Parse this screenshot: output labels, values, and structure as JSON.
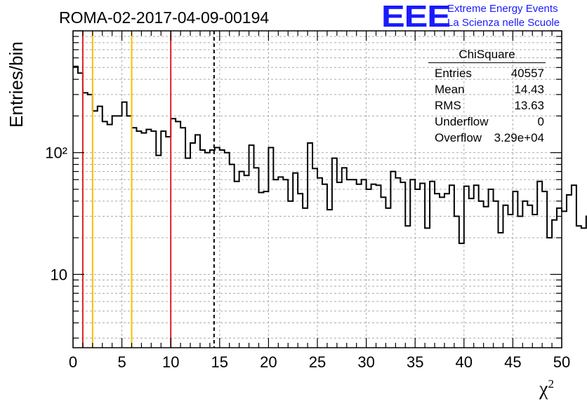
{
  "header": {
    "run_title": "ROMA-02-2017-04-09-00194",
    "logo_text": "EEE",
    "logo_line1": "Extreme Energy Events",
    "logo_line2": "La Scienza nelle Scuole"
  },
  "stats": {
    "title": "ChiSquare",
    "rows": [
      {
        "key": "Entries",
        "value": "40557"
      },
      {
        "key": "Mean",
        "value": "14.43"
      },
      {
        "key": "RMS",
        "value": "13.63"
      },
      {
        "key": "Underflow",
        "value": "0"
      },
      {
        "key": "Overflow",
        "value": "3.29e+04"
      }
    ]
  },
  "chart_data": {
    "type": "histogram",
    "ylabel": "Entries/bin",
    "xlabel": "χ",
    "xlabel_sup": "2",
    "xlim": [
      0,
      50
    ],
    "ylim": [
      2.5,
      1000
    ],
    "yscale": "log",
    "x_ticks": [
      0,
      5,
      10,
      15,
      20,
      25,
      30,
      35,
      40,
      45,
      50
    ],
    "x_tick_labels": [
      "0",
      "5",
      "10",
      "15",
      "20",
      "25",
      "30",
      "35",
      "40",
      "45",
      "50"
    ],
    "y_tick_labels": [
      {
        "value": 10,
        "label": "10"
      },
      {
        "value": 100,
        "label": "10²"
      }
    ],
    "grid": true,
    "bin_width": 0.5,
    "values": [
      510,
      450,
      310,
      300,
      220,
      240,
      180,
      170,
      200,
      200,
      260,
      200,
      160,
      150,
      145,
      155,
      150,
      95,
      150,
      135,
      190,
      180,
      160,
      90,
      120,
      140,
      105,
      100,
      105,
      110,
      105,
      100,
      80,
      58,
      70,
      65,
      115,
      75,
      47,
      48,
      110,
      60,
      63,
      60,
      40,
      68,
      46,
      35,
      120,
      74,
      62,
      55,
      34,
      90,
      57,
      75,
      60,
      60,
      55,
      60,
      50,
      55,
      54,
      43,
      35,
      70,
      62,
      57,
      25,
      60,
      50,
      56,
      24,
      58,
      46,
      43,
      46,
      54,
      30,
      18,
      53,
      42,
      54,
      40,
      36,
      50,
      40,
      22,
      37,
      31,
      48,
      30,
      40,
      37,
      31,
      58,
      48,
      20,
      28,
      35,
      33,
      45,
      54,
      25,
      24,
      30,
      68,
      40,
      26,
      31,
      55,
      30,
      30,
      45,
      26,
      40,
      50,
      40,
      29,
      30,
      22,
      18,
      16,
      65,
      40,
      30,
      25,
      22,
      21,
      27,
      40,
      50,
      20,
      20,
      35,
      23,
      20,
      22,
      16,
      22,
      45,
      39,
      30,
      25,
      20,
      18,
      30,
      28,
      20,
      18,
      27,
      31,
      12,
      12,
      26,
      23,
      14,
      22,
      38,
      26,
      29,
      14,
      25,
      28,
      35,
      20,
      25,
      30,
      14,
      37,
      28,
      30,
      12,
      13,
      28,
      30,
      22,
      14,
      28,
      22,
      15,
      28,
      50,
      22,
      29,
      28,
      25,
      33,
      30,
      50,
      45,
      22,
      5,
      44,
      30,
      34,
      22,
      54,
      21
    ],
    "vertical_markers": [
      {
        "x": 1,
        "color": "#e02020",
        "style": "solid"
      },
      {
        "x": 2,
        "color": "#f5c000",
        "style": "solid"
      },
      {
        "x": 6,
        "color": "#f5c000",
        "style": "solid"
      },
      {
        "x": 10,
        "color": "#e02020",
        "style": "solid"
      },
      {
        "x": 14.43,
        "color": "#000000",
        "style": "dashed"
      }
    ],
    "line_color": "#000000"
  }
}
